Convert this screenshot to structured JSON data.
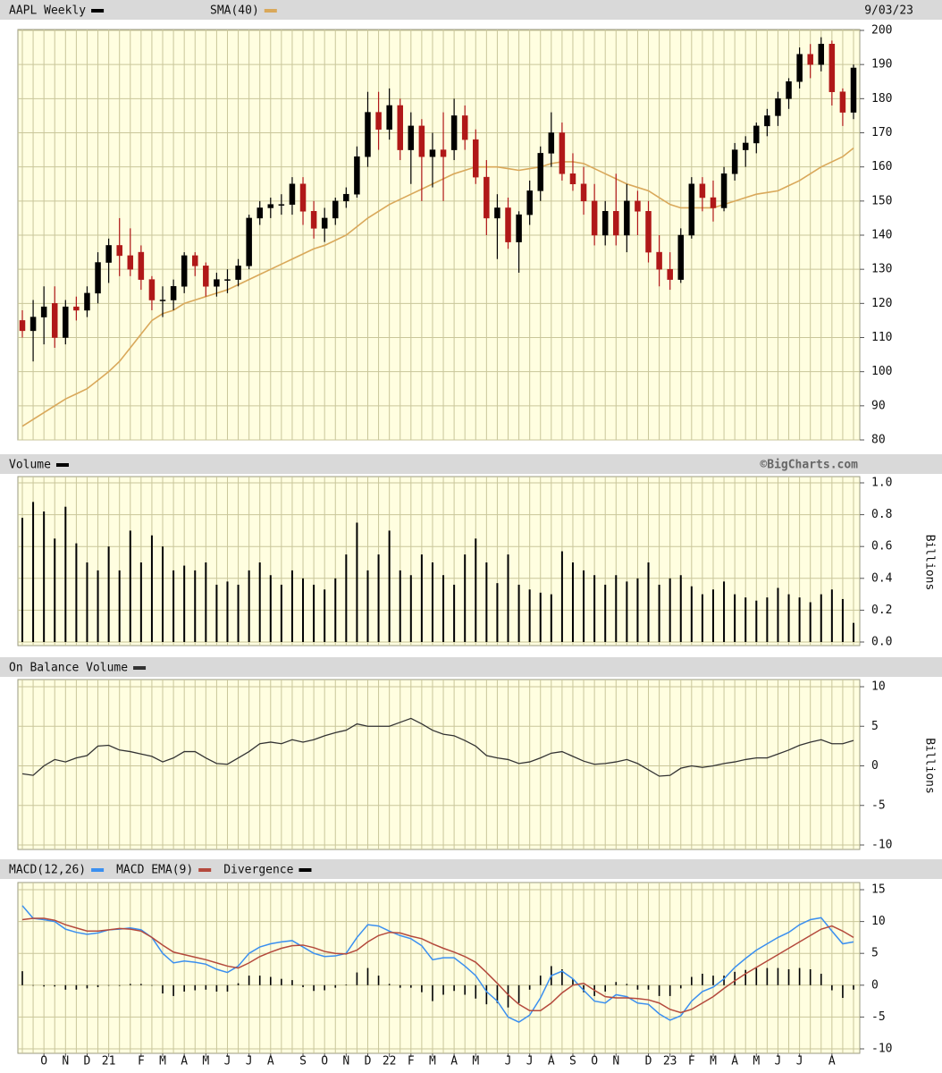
{
  "chart_data": [
    {
      "type": "candlestick",
      "name": "AAPL Weekly",
      "date": "9/03/23",
      "color": "#000000",
      "down_color": "#b01818",
      "open": [
        115,
        112,
        116,
        120,
        110,
        119,
        118,
        123,
        132,
        137,
        134,
        135,
        127,
        121,
        121,
        125,
        134,
        131,
        125,
        127,
        127,
        131,
        145,
        148,
        149,
        149,
        155,
        147,
        142,
        145,
        150,
        152,
        163,
        176,
        171,
        178,
        165,
        172,
        163,
        165,
        165,
        175,
        168,
        157,
        145,
        148,
        138,
        146,
        153,
        164,
        170,
        158,
        155,
        150,
        140,
        147,
        140,
        150,
        147,
        135,
        130,
        127,
        140,
        155,
        151,
        148,
        158,
        165,
        167,
        172,
        175,
        180,
        185,
        193,
        190,
        196,
        182,
        176
      ],
      "high": [
        118,
        121,
        125,
        125,
        121,
        122,
        125,
        135,
        139,
        145,
        142,
        137,
        128,
        125,
        127,
        135,
        135,
        132,
        129,
        130,
        133,
        146,
        150,
        151,
        152,
        157,
        157,
        150,
        148,
        151,
        154,
        166,
        182,
        182,
        183,
        180,
        176,
        174,
        170,
        176,
        180,
        178,
        171,
        162,
        152,
        151,
        147,
        156,
        166,
        176,
        173,
        164,
        160,
        155,
        150,
        158,
        155,
        153,
        150,
        140,
        135,
        142,
        157,
        157,
        156,
        160,
        167,
        169,
        173,
        177,
        182,
        186,
        195,
        196,
        198,
        197,
        183,
        190
      ],
      "low": [
        110,
        103,
        108,
        107,
        108,
        115,
        116,
        120,
        126,
        128,
        128,
        124,
        118,
        116,
        118,
        123,
        128,
        122,
        122,
        123,
        125,
        130,
        143,
        145,
        146,
        146,
        143,
        139,
        138,
        143,
        148,
        151,
        160,
        165,
        168,
        162,
        155,
        150,
        154,
        150,
        162,
        165,
        155,
        140,
        133,
        136,
        129,
        143,
        150,
        160,
        156,
        153,
        146,
        137,
        137,
        137,
        135,
        140,
        132,
        125,
        124,
        126,
        139,
        147,
        144,
        147,
        156,
        160,
        164,
        169,
        172,
        177,
        183,
        186,
        188,
        178,
        172,
        174
      ],
      "close": [
        112,
        116,
        119,
        110,
        119,
        118,
        123,
        132,
        137,
        134,
        130,
        127,
        121,
        121,
        125,
        134,
        131,
        125,
        127,
        127,
        131,
        145,
        148,
        149,
        149,
        155,
        147,
        142,
        145,
        150,
        152,
        163,
        176,
        171,
        178,
        165,
        172,
        163,
        165,
        163,
        175,
        168,
        157,
        145,
        148,
        138,
        146,
        153,
        164,
        170,
        158,
        155,
        150,
        140,
        147,
        140,
        150,
        147,
        135,
        130,
        127,
        140,
        155,
        151,
        148,
        158,
        165,
        167,
        172,
        175,
        180,
        185,
        193,
        190,
        196,
        182,
        176,
        189
      ],
      "overlays": [
        {
          "name": "SMA(40)",
          "color": "#d9a85a",
          "values": [
            84,
            86,
            88,
            90,
            92,
            93.5,
            95,
            97.5,
            100,
            103,
            107,
            111,
            115,
            117,
            118,
            120,
            121,
            122,
            123,
            124,
            125.5,
            127,
            128.5,
            130,
            131.5,
            133,
            134.5,
            136,
            137,
            138.5,
            140,
            142.5,
            145,
            147,
            149,
            150.5,
            152,
            153.5,
            155,
            156.5,
            158,
            159,
            160,
            160,
            160,
            159.5,
            159,
            159.5,
            160,
            161,
            161.5,
            161.5,
            161,
            159.5,
            158,
            156.5,
            155,
            154,
            153,
            151,
            149,
            148,
            148,
            148,
            148,
            149,
            150,
            151,
            152,
            152.5,
            153,
            154.5,
            156,
            158,
            160,
            161.5,
            163,
            165.5
          ]
        }
      ],
      "ylim": [
        80,
        200
      ],
      "yticks": [
        80,
        90,
        100,
        110,
        120,
        130,
        140,
        150,
        160,
        170,
        180,
        190,
        200
      ],
      "grid": true
    },
    {
      "type": "bar",
      "title": "Volume",
      "credit": "©BigCharts.com",
      "axis_label": "Billions",
      "color": "#000000",
      "values": [
        0.78,
        0.88,
        0.82,
        0.65,
        0.85,
        0.62,
        0.5,
        0.45,
        0.6,
        0.45,
        0.7,
        0.5,
        0.67,
        0.6,
        0.45,
        0.48,
        0.45,
        0.5,
        0.36,
        0.38,
        0.36,
        0.45,
        0.5,
        0.42,
        0.36,
        0.45,
        0.4,
        0.36,
        0.33,
        0.4,
        0.55,
        0.75,
        0.45,
        0.55,
        0.7,
        0.45,
        0.42,
        0.55,
        0.5,
        0.42,
        0.36,
        0.55,
        0.65,
        0.5,
        0.37,
        0.55,
        0.36,
        0.33,
        0.31,
        0.3,
        0.57,
        0.5,
        0.45,
        0.42,
        0.36,
        0.42,
        0.38,
        0.4,
        0.5,
        0.36,
        0.4,
        0.42,
        0.35,
        0.3,
        0.33,
        0.38,
        0.3,
        0.28,
        0.26,
        0.28,
        0.34,
        0.3,
        0.28,
        0.25,
        0.3,
        0.33,
        0.27,
        0.12
      ],
      "ylim": [
        0,
        1
      ],
      "yticks": [
        {
          "value": 0,
          "label": "0.0"
        },
        0.2,
        0.4,
        0.6,
        0.8,
        {
          "value": 1,
          "label": "1.0"
        }
      ],
      "grid": true
    },
    {
      "type": "line",
      "title": "On Balance Volume",
      "axis_label": "Billions",
      "color": "#333333",
      "values": [
        -1,
        -1.2,
        0,
        0.8,
        0.5,
        1,
        1.3,
        2.5,
        2.6,
        2,
        1.8,
        1.5,
        1.2,
        0.5,
        1,
        1.8,
        1.8,
        1,
        0.3,
        0.2,
        1,
        1.8,
        2.8,
        3,
        2.8,
        3.3,
        3,
        3.3,
        3.8,
        4.2,
        4.5,
        5.3,
        5,
        5,
        5,
        5.5,
        6,
        5.3,
        4.5,
        4,
        3.8,
        3.2,
        2.5,
        1.3,
        1,
        0.8,
        0.3,
        0.5,
        1,
        1.6,
        1.8,
        1.2,
        0.6,
        0.2,
        0.3,
        0.5,
        0.8,
        0.3,
        -0.5,
        -1.3,
        -1.2,
        -0.3,
        0,
        -0.2,
        0,
        0.3,
        0.5,
        0.8,
        1,
        1,
        1.5,
        2,
        2.6,
        3,
        3.3,
        2.8,
        2.8,
        3.2
      ],
      "ylim": [
        -10,
        10
      ],
      "yticks": [
        -10,
        -5,
        0,
        5,
        10
      ],
      "grid": true
    },
    {
      "type": "macd",
      "categories": [
        null,
        null,
        "O",
        null,
        "N",
        null,
        "D",
        null,
        "21",
        null,
        null,
        "F",
        null,
        "M",
        null,
        "A",
        null,
        "M",
        null,
        "J",
        null,
        "J",
        null,
        "A",
        null,
        null,
        "S",
        null,
        "O",
        null,
        "N",
        null,
        "D",
        null,
        "22",
        null,
        "F",
        null,
        "M",
        null,
        "A",
        null,
        "M",
        null,
        null,
        "J",
        null,
        "J",
        null,
        "A",
        null,
        "S",
        null,
        "O",
        null,
        "N",
        null,
        null,
        "D",
        null,
        "23",
        null,
        "F",
        null,
        "M",
        null,
        "A",
        null,
        "M",
        null,
        "J",
        null,
        "J",
        null,
        null,
        "A",
        null,
        null
      ],
      "series": [
        {
          "name": "MACD(12,26)",
          "color": "#3a8ff0",
          "type": "line",
          "values": [
            12.5,
            10.5,
            10.3,
            10,
            8.8,
            8.3,
            8,
            8.2,
            8.7,
            8.8,
            9,
            8.7,
            7.5,
            5,
            3.5,
            3.8,
            3.6,
            3.3,
            2.5,
            2,
            3,
            5,
            6,
            6.5,
            6.8,
            7,
            6,
            5,
            4.5,
            4.6,
            5,
            7.5,
            9.5,
            9.3,
            8.5,
            7.8,
            7.3,
            6.2,
            4,
            4.3,
            4.3,
            3,
            1.5,
            -1,
            -2.5,
            -5,
            -5.8,
            -4.7,
            -2,
            1.5,
            2.2,
            1,
            -0.8,
            -2.5,
            -2.8,
            -1.5,
            -1.8,
            -2.8,
            -3,
            -4.5,
            -5.5,
            -4.8,
            -2.5,
            -1,
            -0.3,
            1,
            2.8,
            4.2,
            5.5,
            6.5,
            7.5,
            8.3,
            9.5,
            10.3,
            10.6,
            8.5,
            6.5,
            6.8
          ]
        },
        {
          "name": "MACD EMA(9)",
          "color": "#b4493c",
          "type": "line",
          "values": [
            10.3,
            10.5,
            10.5,
            10.2,
            9.5,
            9,
            8.5,
            8.5,
            8.7,
            8.9,
            8.8,
            8.5,
            7.5,
            6.3,
            5.2,
            4.8,
            4.4,
            4,
            3.5,
            3,
            2.7,
            3.5,
            4.5,
            5.2,
            5.8,
            6.2,
            6.3,
            5.9,
            5.3,
            5,
            4.9,
            5.5,
            6.8,
            7.8,
            8.3,
            8.2,
            7.7,
            7.3,
            6.5,
            5.8,
            5.2,
            4.5,
            3.6,
            2,
            0.3,
            -1.5,
            -3,
            -4,
            -4,
            -2.8,
            -1.2,
            0,
            0.3,
            -0.8,
            -1.8,
            -2,
            -2,
            -2.1,
            -2.3,
            -2.8,
            -3.8,
            -4.3,
            -3.8,
            -2.8,
            -1.8,
            -0.5,
            0.7,
            1.8,
            2.8,
            3.8,
            4.8,
            5.8,
            6.8,
            7.8,
            8.8,
            9.3,
            8.5,
            7.5
          ]
        },
        {
          "name": "Divergence",
          "color": "#000000",
          "type": "bar",
          "values": [
            2.2,
            0,
            -0.2,
            -0.2,
            -0.7,
            -0.7,
            -0.5,
            -0.3,
            0,
            -0.1,
            0.2,
            0.2,
            0,
            -1.3,
            -1.7,
            -1,
            -0.8,
            -0.7,
            -1,
            -1,
            0.3,
            1.5,
            1.5,
            1.3,
            1,
            0.8,
            -0.3,
            -0.9,
            -0.8,
            -0.4,
            0.1,
            2,
            2.7,
            1.5,
            0.2,
            -0.4,
            -0.4,
            -1.1,
            -2.5,
            -1.5,
            -0.9,
            -1.5,
            -2.1,
            -3,
            -2.8,
            -3.5,
            -2.8,
            -0.7,
            1.5,
            3,
            2.5,
            1,
            -1.1,
            -1.7,
            -1,
            0.5,
            0.2,
            -0.7,
            -0.7,
            -1.7,
            -1.7,
            -0.5,
            1.3,
            1.8,
            1.5,
            1.5,
            2.1,
            2.4,
            2.7,
            2.7,
            2.7,
            2.5,
            2.7,
            2.5,
            1.8,
            -0.8,
            -2,
            -0.7
          ]
        }
      ],
      "ylim": [
        -10,
        15
      ],
      "yticks": [
        -10,
        -5,
        0,
        5,
        10,
        15
      ],
      "grid": true
    }
  ]
}
